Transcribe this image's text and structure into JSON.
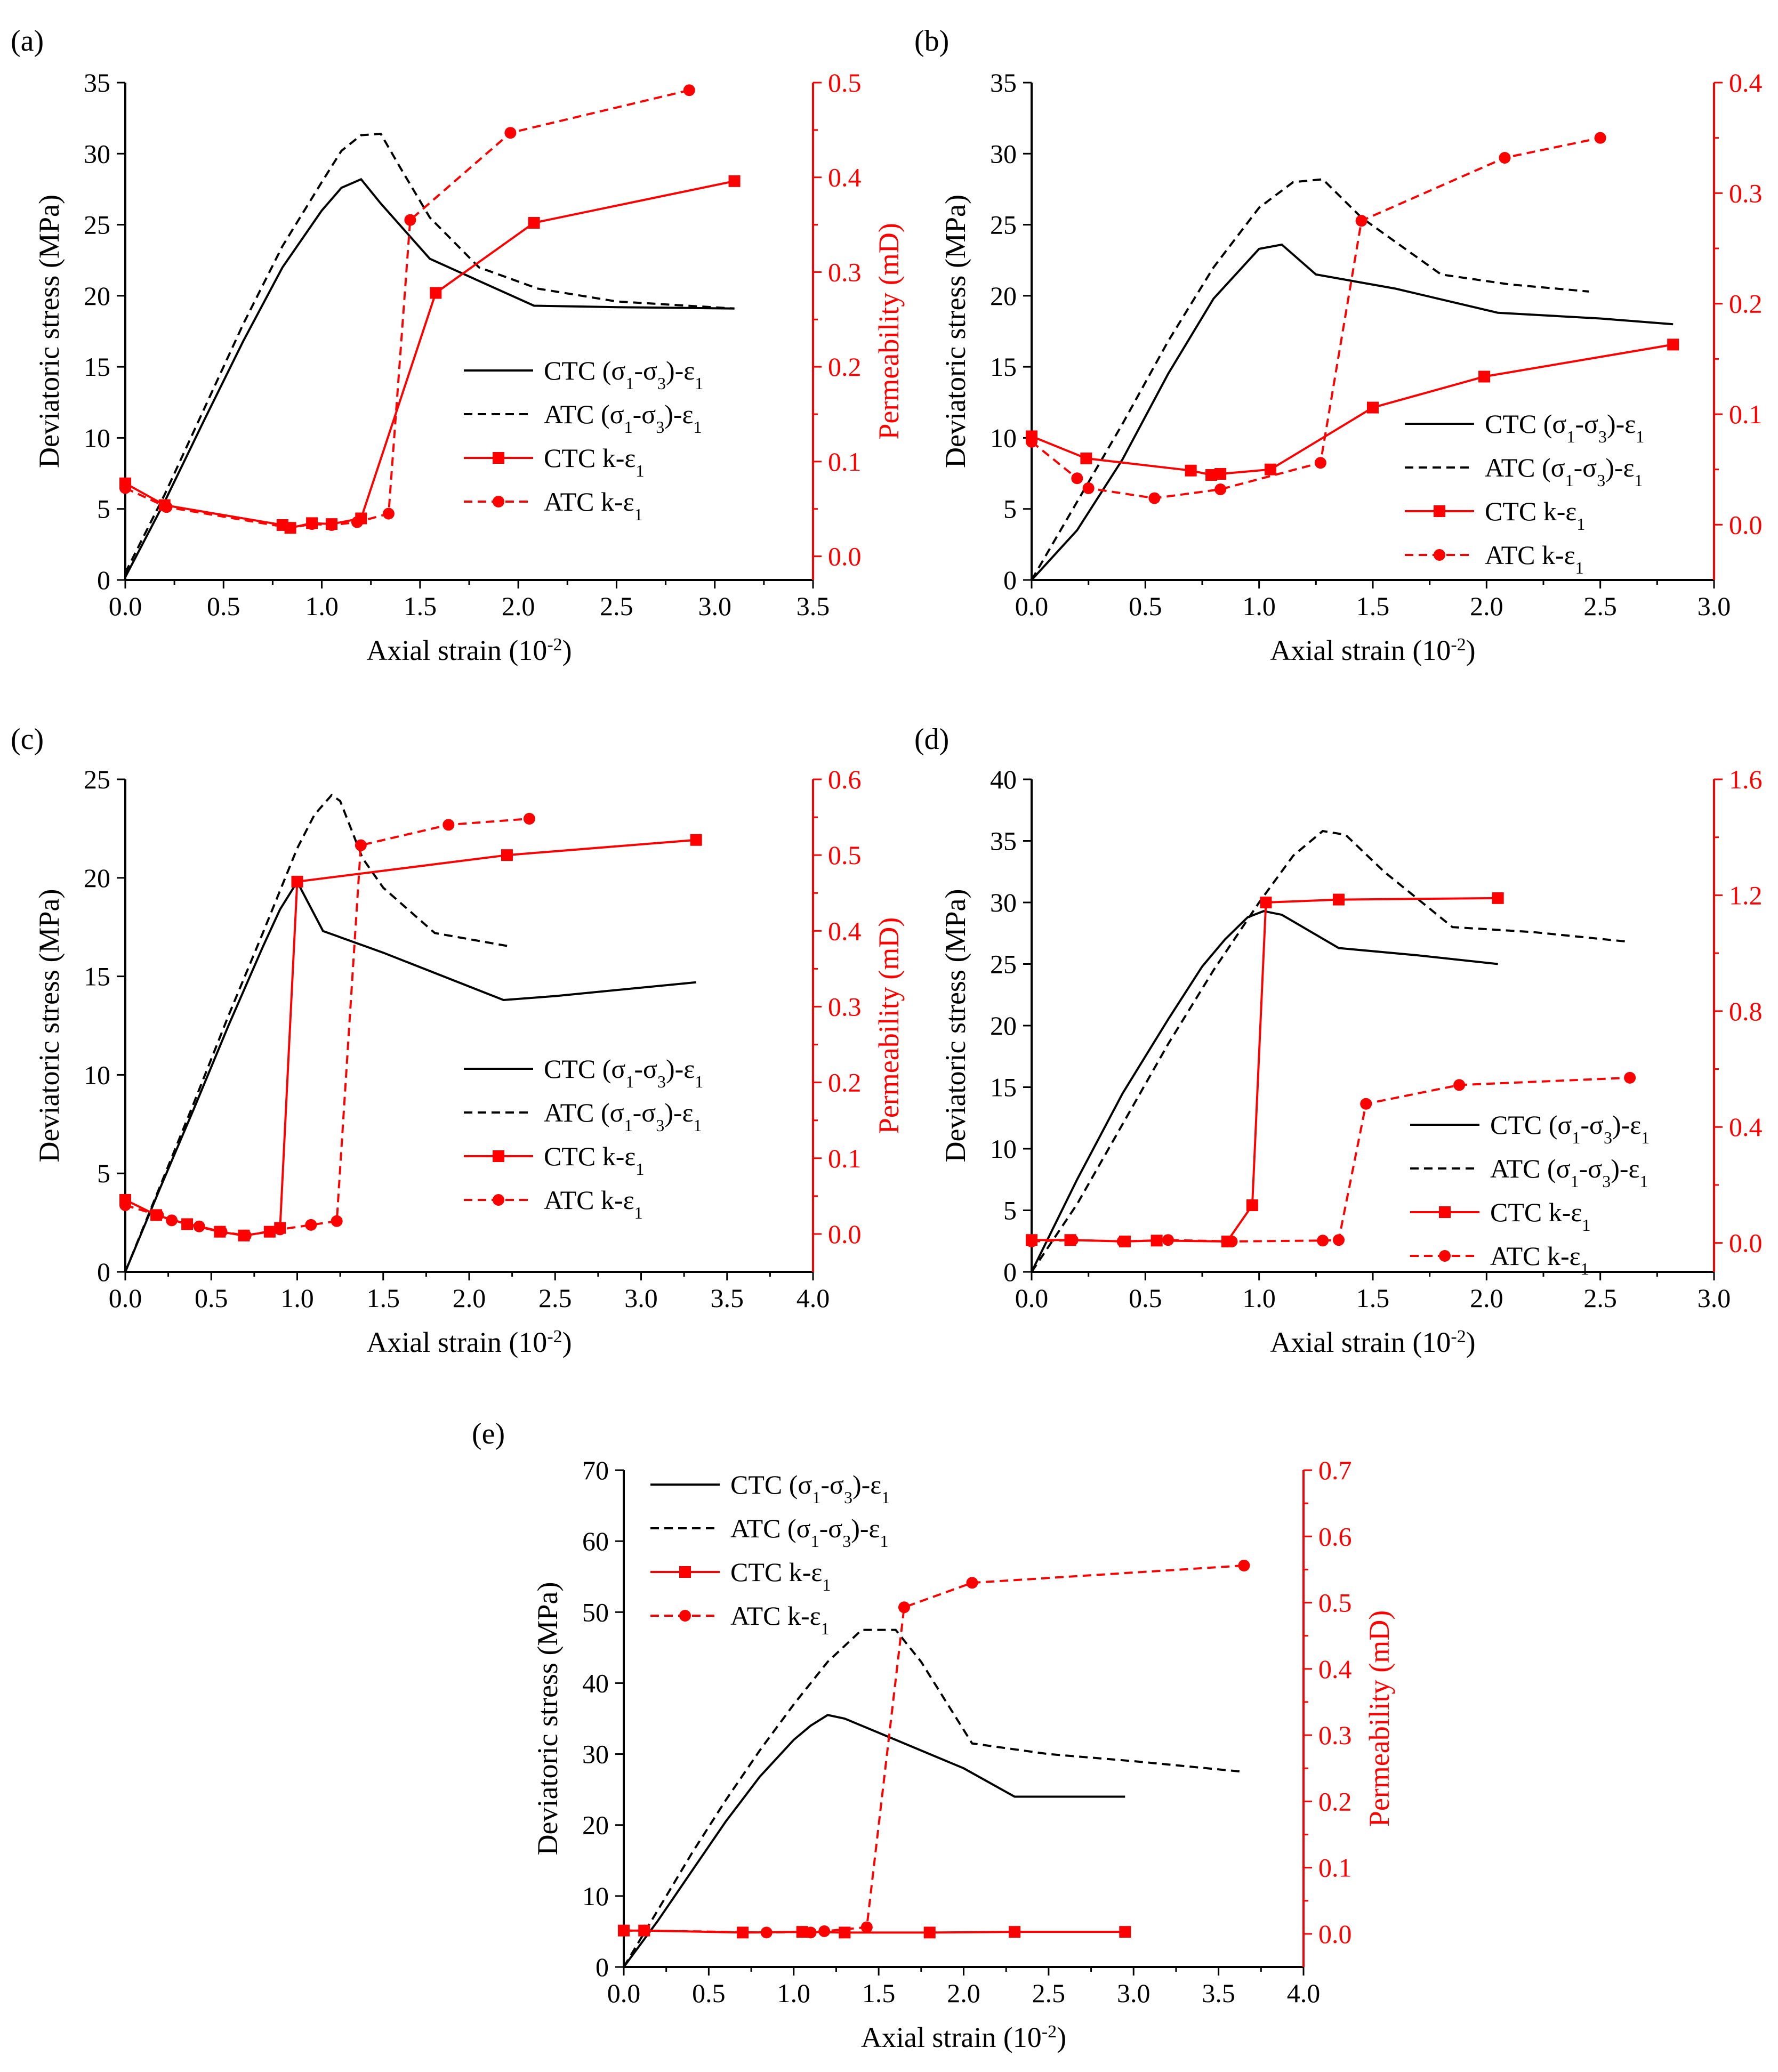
{
  "colors": {
    "black": "#000000",
    "red": "#ff0000"
  },
  "common": {
    "xlabel": "Axial strain",
    "xlabel_unit": "(10",
    "xlabel_exp": "-2",
    "xlabel_close": ")",
    "ylabel_left": "Deviatoric stress  (MPa)",
    "ylabel_right": "Permeability  (mD)",
    "legend": [
      {
        "test": "CTC",
        "type": "stress",
        "series_id": "ctc_stress"
      },
      {
        "test": "ATC",
        "type": "stress",
        "series_id": "atc_stress"
      },
      {
        "test": "CTC",
        "type": "perm",
        "series_id": "ctc_perm"
      },
      {
        "test": "ATC",
        "type": "perm",
        "series_id": "atc_perm"
      }
    ]
  },
  "chart_data": [
    {
      "panel": "(a)",
      "type": "line",
      "x_ticks": [
        "0.0",
        "0.5",
        "1.0",
        "1.5",
        "2.0",
        "2.5",
        "3.0",
        "3.5"
      ],
      "y_left_ticks": [
        "0",
        "5",
        "10",
        "15",
        "20",
        "25",
        "30",
        "35"
      ],
      "y_right_ticks": [
        "0.0",
        "0.1",
        "0.2",
        "0.3",
        "0.4",
        "0.5"
      ],
      "xlim": [
        0,
        3.5
      ],
      "ylim_left": [
        0,
        35
      ],
      "ylim_right": [
        -0.025,
        0.5
      ],
      "series": [
        {
          "id": "ctc_stress",
          "name": "CTC (σ1-σ3)-ε1",
          "axis": "left",
          "style": "solid",
          "marker": "none",
          "x": [
            0,
            0.2,
            0.4,
            0.6,
            0.8,
            1.0,
            1.1,
            1.2,
            1.3,
            1.55,
            2.08,
            2.5,
            3.1
          ],
          "y": [
            0.2,
            5.5,
            11.2,
            16.8,
            22.0,
            26.0,
            27.6,
            28.2,
            26.5,
            22.6,
            19.3,
            19.2,
            19.1
          ]
        },
        {
          "id": "atc_stress",
          "name": "ATC (σ1-σ3)-ε1",
          "axis": "left",
          "style": "dashed",
          "marker": "none",
          "x": [
            0,
            0.2,
            0.4,
            0.6,
            0.8,
            1.0,
            1.1,
            1.2,
            1.3,
            1.4,
            1.55,
            1.8,
            2.1,
            2.5,
            3.1
          ],
          "y": [
            0.5,
            6.0,
            12.0,
            18.0,
            23.5,
            28.0,
            30.2,
            31.3,
            31.4,
            29.0,
            25.5,
            22.0,
            20.5,
            19.6,
            19.1
          ]
        },
        {
          "id": "ctc_perm",
          "name": "CTC k-ε1",
          "axis": "right",
          "style": "solid",
          "marker": "square",
          "x": [
            0,
            0.2,
            0.8,
            0.84,
            0.95,
            1.05,
            1.2,
            1.58,
            2.08,
            3.1
          ],
          "y": [
            0.077,
            0.054,
            0.033,
            0.03,
            0.035,
            0.034,
            0.04,
            0.278,
            0.352,
            0.396
          ]
        },
        {
          "id": "atc_perm",
          "name": "ATC k-ε1",
          "axis": "right",
          "style": "dashed",
          "marker": "circle",
          "x": [
            0,
            0.21,
            0.84,
            0.95,
            1.05,
            1.18,
            1.34,
            1.45,
            1.96,
            2.87
          ],
          "y": [
            0.072,
            0.052,
            0.03,
            0.034,
            0.033,
            0.036,
            0.045,
            0.355,
            0.447,
            0.492
          ]
        }
      ]
    },
    {
      "panel": "(b)",
      "type": "line",
      "x_ticks": [
        "0.0",
        "0.5",
        "1.0",
        "1.5",
        "2.0",
        "2.5",
        "3.0"
      ],
      "y_left_ticks": [
        "0",
        "5",
        "10",
        "15",
        "20",
        "25",
        "30",
        "35"
      ],
      "y_right_ticks": [
        "0.0",
        "0.1",
        "0.2",
        "0.3",
        "0.4"
      ],
      "xlim": [
        0,
        3.0
      ],
      "ylim_left": [
        0,
        35
      ],
      "ylim_right": [
        -0.05,
        0.4
      ],
      "series": [
        {
          "id": "ctc_stress",
          "name": "CTC (σ1-σ3)-ε1",
          "axis": "left",
          "style": "solid",
          "marker": "none",
          "x": [
            0,
            0.2,
            0.4,
            0.6,
            0.8,
            1.0,
            1.1,
            1.25,
            1.6,
            2.05,
            2.5,
            2.82
          ],
          "y": [
            0,
            3.5,
            8.5,
            14.5,
            19.8,
            23.3,
            23.6,
            21.5,
            20.5,
            18.8,
            18.4,
            18.0
          ]
        },
        {
          "id": "atc_stress",
          "name": "ATC (σ1-σ3)-ε1",
          "axis": "left",
          "style": "dashed",
          "marker": "none",
          "x": [
            0,
            0.2,
            0.4,
            0.6,
            0.8,
            1.0,
            1.15,
            1.28,
            1.45,
            1.8,
            2.1,
            2.45
          ],
          "y": [
            0,
            5.5,
            11.0,
            16.8,
            22.0,
            26.2,
            28.0,
            28.2,
            25.5,
            21.5,
            20.8,
            20.3
          ]
        },
        {
          "id": "ctc_perm",
          "name": "CTC k-ε1",
          "axis": "right",
          "style": "solid",
          "marker": "square",
          "x": [
            0,
            0.24,
            0.7,
            0.79,
            0.83,
            1.05,
            1.5,
            1.99,
            2.82
          ],
          "y": [
            0.08,
            0.06,
            0.049,
            0.045,
            0.046,
            0.05,
            0.106,
            0.134,
            0.163
          ]
        },
        {
          "id": "atc_perm",
          "name": "ATC k-ε1",
          "axis": "right",
          "style": "dashed",
          "marker": "circle",
          "x": [
            0,
            0.2,
            0.25,
            0.54,
            0.83,
            1.27,
            1.45,
            2.08,
            2.5
          ],
          "y": [
            0.075,
            0.042,
            0.033,
            0.024,
            0.032,
            0.056,
            0.275,
            0.332,
            0.35
          ]
        }
      ]
    },
    {
      "panel": "(c)",
      "type": "line",
      "x_ticks": [
        "0.0",
        "0.5",
        "1.0",
        "1.5",
        "2.0",
        "2.5",
        "3.0",
        "3.5",
        "4.0"
      ],
      "y_left_ticks": [
        "0",
        "5",
        "10",
        "15",
        "20",
        "25"
      ],
      "y_right_ticks": [
        "0.0",
        "0.1",
        "0.2",
        "0.3",
        "0.4",
        "0.5",
        "0.6"
      ],
      "xlim": [
        0,
        4.0
      ],
      "ylim_left": [
        0,
        25
      ],
      "ylim_right": [
        -0.05,
        0.6
      ],
      "series": [
        {
          "id": "ctc_stress",
          "name": "CTC (σ1-σ3)-ε1",
          "axis": "left",
          "style": "solid",
          "marker": "none",
          "x": [
            0,
            0.2,
            0.4,
            0.6,
            0.8,
            0.9,
            1.0,
            1.15,
            1.5,
            2.2,
            2.5,
            3.32
          ],
          "y": [
            0,
            4.2,
            8.3,
            12.5,
            16.5,
            18.4,
            19.8,
            17.3,
            16.2,
            13.8,
            14.0,
            14.7
          ]
        },
        {
          "id": "atc_stress",
          "name": "ATC (σ1-σ3)-ε1",
          "axis": "left",
          "style": "dashed",
          "marker": "none",
          "x": [
            0,
            0.2,
            0.4,
            0.6,
            0.8,
            1.0,
            1.1,
            1.2,
            1.25,
            1.38,
            1.5,
            1.8,
            2.25
          ],
          "y": [
            0,
            4.3,
            8.6,
            13.0,
            17.2,
            21.5,
            23.2,
            24.2,
            23.9,
            21.0,
            19.5,
            17.2,
            16.5
          ]
        },
        {
          "id": "ctc_perm",
          "name": "CTC k-ε1",
          "axis": "right",
          "style": "solid",
          "marker": "square",
          "x": [
            0,
            0.18,
            0.36,
            0.55,
            0.69,
            0.84,
            0.9,
            1.0,
            2.22,
            3.32
          ],
          "y": [
            0.045,
            0.025,
            0.013,
            0.003,
            -0.002,
            0.003,
            0.008,
            0.465,
            0.5,
            0.52
          ]
        },
        {
          "id": "atc_perm",
          "name": "ATC k-ε1",
          "axis": "right",
          "style": "dashed",
          "marker": "circle",
          "x": [
            0,
            0.19,
            0.27,
            0.43,
            0.56,
            0.7,
            0.9,
            1.08,
            1.23,
            1.37,
            1.88,
            2.35
          ],
          "y": [
            0.038,
            0.025,
            0.018,
            0.01,
            0.003,
            -0.002,
            0.006,
            0.012,
            0.017,
            0.513,
            0.54,
            0.548
          ]
        }
      ]
    },
    {
      "panel": "(d)",
      "type": "line",
      "x_ticks": [
        "0.0",
        "0.5",
        "1.0",
        "1.5",
        "2.0",
        "2.5",
        "3.0"
      ],
      "y_left_ticks": [
        "0",
        "5",
        "10",
        "15",
        "20",
        "25",
        "30",
        "35",
        "40"
      ],
      "y_right_ticks": [
        "0.0",
        "0.4",
        "0.8",
        "1.2",
        "1.6"
      ],
      "xlim": [
        0,
        3.0
      ],
      "ylim_left": [
        0,
        40
      ],
      "ylim_right": [
        -0.1,
        1.6
      ],
      "series": [
        {
          "id": "ctc_stress",
          "name": "CTC (σ1-σ3)-ε1",
          "axis": "left",
          "style": "solid",
          "marker": "none",
          "x": [
            0,
            0.2,
            0.4,
            0.6,
            0.75,
            0.85,
            0.95,
            1.02,
            1.1,
            1.35,
            1.7,
            2.05
          ],
          "y": [
            0,
            7.5,
            14.5,
            20.5,
            24.8,
            27.0,
            28.8,
            29.3,
            29.0,
            26.3,
            25.7,
            25.0
          ]
        },
        {
          "id": "atc_stress",
          "name": "ATC (σ1-σ3)-ε1",
          "axis": "left",
          "style": "dashed",
          "marker": "none",
          "x": [
            0,
            0.2,
            0.4,
            0.6,
            0.8,
            1.0,
            1.15,
            1.28,
            1.38,
            1.55,
            1.85,
            2.2,
            2.63
          ],
          "y": [
            0,
            5.5,
            12.0,
            18.5,
            24.5,
            30.0,
            33.8,
            35.8,
            35.5,
            32.5,
            28.0,
            27.6,
            26.8
          ]
        },
        {
          "id": "ctc_perm",
          "name": "CTC k-ε1",
          "axis": "right",
          "style": "solid",
          "marker": "square",
          "x": [
            0,
            0.17,
            0.41,
            0.55,
            0.86,
            0.97,
            1.03,
            1.35,
            2.05
          ],
          "y": [
            0.01,
            0.01,
            0.005,
            0.008,
            0.005,
            0.13,
            1.175,
            1.185,
            1.19
          ]
        },
        {
          "id": "atc_perm",
          "name": "ATC k-ε1",
          "axis": "right",
          "style": "dashed",
          "marker": "circle",
          "x": [
            0,
            0.18,
            0.4,
            0.6,
            0.88,
            1.28,
            1.35,
            1.47,
            1.88,
            2.63
          ],
          "y": [
            0.005,
            0.01,
            0.005,
            0.01,
            0.005,
            0.008,
            0.01,
            0.48,
            0.545,
            0.57
          ]
        }
      ]
    },
    {
      "panel": "(e)",
      "type": "line",
      "x_ticks": [
        "0.0",
        "0.5",
        "1.0",
        "1.5",
        "2.0",
        "2.5",
        "3.0",
        "3.5",
        "4.0"
      ],
      "y_left_ticks": [
        "0",
        "10",
        "20",
        "30",
        "40",
        "50",
        "60",
        "70"
      ],
      "y_right_ticks": [
        "0.0",
        "0.1",
        "0.2",
        "0.3",
        "0.4",
        "0.5",
        "0.6",
        "0.7"
      ],
      "xlim": [
        0,
        4.0
      ],
      "ylim_left": [
        0,
        70
      ],
      "ylim_right": [
        -0.05,
        0.7
      ],
      "series": [
        {
          "id": "ctc_stress",
          "name": "CTC (σ1-σ3)-ε1",
          "axis": "left",
          "style": "solid",
          "marker": "none",
          "x": [
            0,
            0.2,
            0.4,
            0.6,
            0.8,
            1.0,
            1.1,
            1.2,
            1.3,
            1.6,
            2.0,
            2.3,
            2.6,
            2.95
          ],
          "y": [
            0,
            6.5,
            13.5,
            20.5,
            26.8,
            32.0,
            34.0,
            35.5,
            35.0,
            32.0,
            28.0,
            24.0,
            24.0,
            24.0
          ]
        },
        {
          "id": "atc_stress",
          "name": "ATC (σ1-σ3)-ε1",
          "axis": "left",
          "style": "dashed",
          "marker": "none",
          "x": [
            0,
            0.2,
            0.4,
            0.6,
            0.8,
            1.0,
            1.2,
            1.4,
            1.6,
            1.75,
            2.05,
            2.5,
            3.0,
            3.65
          ],
          "y": [
            0,
            8.0,
            16.0,
            23.5,
            30.5,
            37.0,
            43.0,
            47.5,
            47.5,
            43.0,
            31.5,
            30.0,
            29.0,
            27.5
          ]
        },
        {
          "id": "ctc_perm",
          "name": "CTC k-ε1",
          "axis": "right",
          "style": "solid",
          "marker": "square",
          "x": [
            0,
            0.12,
            0.7,
            1.05,
            1.3,
            1.8,
            2.3,
            2.95
          ],
          "y": [
            0.005,
            0.005,
            0.002,
            0.003,
            0.002,
            0.002,
            0.003,
            0.003
          ]
        },
        {
          "id": "atc_perm",
          "name": "ATC k-ε1",
          "axis": "right",
          "style": "dashed",
          "marker": "circle",
          "x": [
            0,
            0.12,
            0.84,
            1.05,
            1.1,
            1.18,
            1.43,
            1.65,
            2.05,
            3.65
          ],
          "y": [
            0.005,
            0.005,
            0.002,
            0.003,
            0.002,
            0.004,
            0.01,
            0.493,
            0.53,
            0.556
          ]
        }
      ]
    }
  ]
}
